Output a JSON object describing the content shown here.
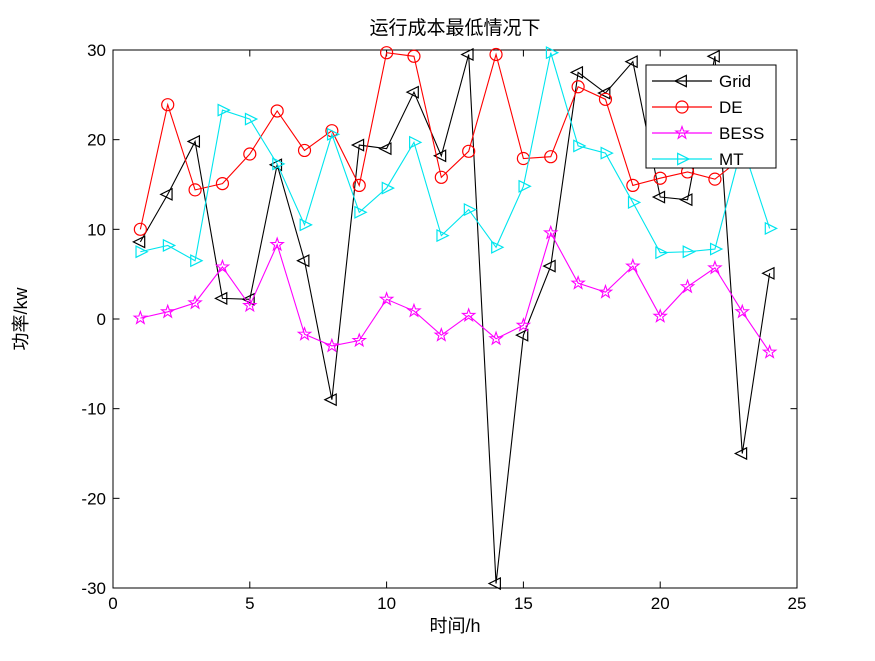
{
  "title": "运行成本最低情况下",
  "axes": {
    "xlabel": "时间/h",
    "ylabel": "功率/kw",
    "x_ticks": [
      0,
      5,
      10,
      15,
      20,
      25
    ],
    "y_ticks": [
      -30,
      -20,
      -10,
      0,
      10,
      20,
      30
    ],
    "xlim": [
      0,
      25
    ],
    "ylim": [
      -30,
      30
    ]
  },
  "legend": {
    "position": "upper-right-inside",
    "entries": [
      {
        "label": "Grid",
        "color": "#000000",
        "marker": "triangle-left"
      },
      {
        "label": "DE",
        "color": "#ff0000",
        "marker": "circle"
      },
      {
        "label": "BESS",
        "color": "#ff00ff",
        "marker": "star"
      },
      {
        "label": "MT",
        "color": "#00e5ee",
        "marker": "triangle-right"
      }
    ]
  },
  "chart_data": {
    "type": "line",
    "title": "运行成本最低情况下",
    "xlabel": "时间/h",
    "ylabel": "功率/kw",
    "xlim": [
      0,
      25
    ],
    "ylim": [
      -30,
      30
    ],
    "grid": false,
    "legend_position": "upper right inside",
    "x": [
      1,
      2,
      3,
      4,
      5,
      6,
      7,
      8,
      9,
      10,
      11,
      12,
      13,
      14,
      15,
      16,
      17,
      18,
      19,
      20,
      21,
      22,
      23,
      24
    ],
    "series": [
      {
        "name": "Grid",
        "color": "#000000",
        "marker": "triangle-left",
        "values": [
          8.6,
          13.9,
          19.8,
          2.3,
          2.2,
          17.2,
          6.5,
          -9,
          19.4,
          19,
          25.3,
          18.2,
          29.5,
          -29.5,
          -1.8,
          5.9,
          27.5,
          25.2,
          28.7,
          13.6,
          13.3,
          29.3,
          -15,
          5.1
        ]
      },
      {
        "name": "DE",
        "color": "#ff0000",
        "marker": "circle",
        "values": [
          10,
          23.9,
          14.4,
          15.1,
          18.4,
          23.2,
          18.8,
          21,
          14.9,
          29.7,
          29.3,
          15.8,
          18.7,
          29.5,
          17.9,
          18.1,
          25.9,
          24.5,
          14.9,
          15.7,
          16.4,
          15.6,
          18,
          18.5
        ]
      },
      {
        "name": "BESS",
        "color": "#ff00ff",
        "marker": "star",
        "values": [
          0.1,
          0.8,
          1.8,
          5.8,
          1.5,
          8.3,
          -1.7,
          -3,
          -2.4,
          2.2,
          0.9,
          -1.8,
          0.4,
          -2.2,
          -0.7,
          9.6,
          4,
          3,
          5.9,
          0.3,
          3.6,
          5.7,
          0.8,
          -3.7
        ]
      },
      {
        "name": "MT",
        "color": "#00e5ee",
        "marker": "triangle-right",
        "values": [
          7.5,
          8.2,
          6.5,
          23.3,
          22.3,
          17.3,
          10.5,
          20.6,
          11.9,
          14.6,
          19.7,
          9.3,
          12.2,
          8,
          14.8,
          29.7,
          19.3,
          18.5,
          13,
          7.4,
          7.5,
          7.8,
          19.4,
          10.1
        ]
      }
    ]
  }
}
